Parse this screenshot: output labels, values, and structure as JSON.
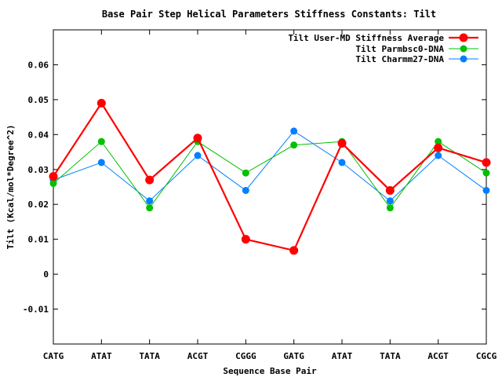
{
  "chart_data": {
    "type": "line",
    "title": "Base Pair Step Helical Parameters Stiffness Constants: Tilt",
    "xlabel": "Sequence Base Pair",
    "ylabel": "Tilt (Kcal/mol*Degree^2)",
    "categories": [
      "CATG",
      "ATAT",
      "TATA",
      "ACGT",
      "CGGG",
      "GATG",
      "ATAT",
      "TATA",
      "ACGT",
      "CGCG"
    ],
    "ylim": [
      -0.02,
      0.07
    ],
    "yticks": [
      -0.01,
      0,
      0.01,
      0.02,
      0.03,
      0.04,
      0.05,
      0.06
    ],
    "ytick_labels": [
      "-0.01",
      "0",
      "0.01",
      "0.02",
      "0.03",
      "0.04",
      "0.05",
      "0.06"
    ],
    "grid": false,
    "legend_position": "top-right",
    "series": [
      {
        "name": "Tilt User-MD Stiffness Average",
        "color": "#ff0000",
        "values": [
          0.028,
          0.049,
          0.027,
          0.039,
          0.01,
          0.0068,
          0.0375,
          0.024,
          0.0362,
          0.032
        ]
      },
      {
        "name": "Tilt Parmbsc0-DNA",
        "color": "#00c000",
        "values": [
          0.026,
          0.038,
          0.019,
          0.038,
          0.029,
          0.037,
          0.038,
          0.019,
          0.038,
          0.029
        ]
      },
      {
        "name": "Tilt Charmm27-DNA",
        "color": "#0080ff",
        "values": [
          0.027,
          0.032,
          0.021,
          0.034,
          0.024,
          0.041,
          0.032,
          0.021,
          0.034,
          0.024
        ]
      }
    ]
  }
}
